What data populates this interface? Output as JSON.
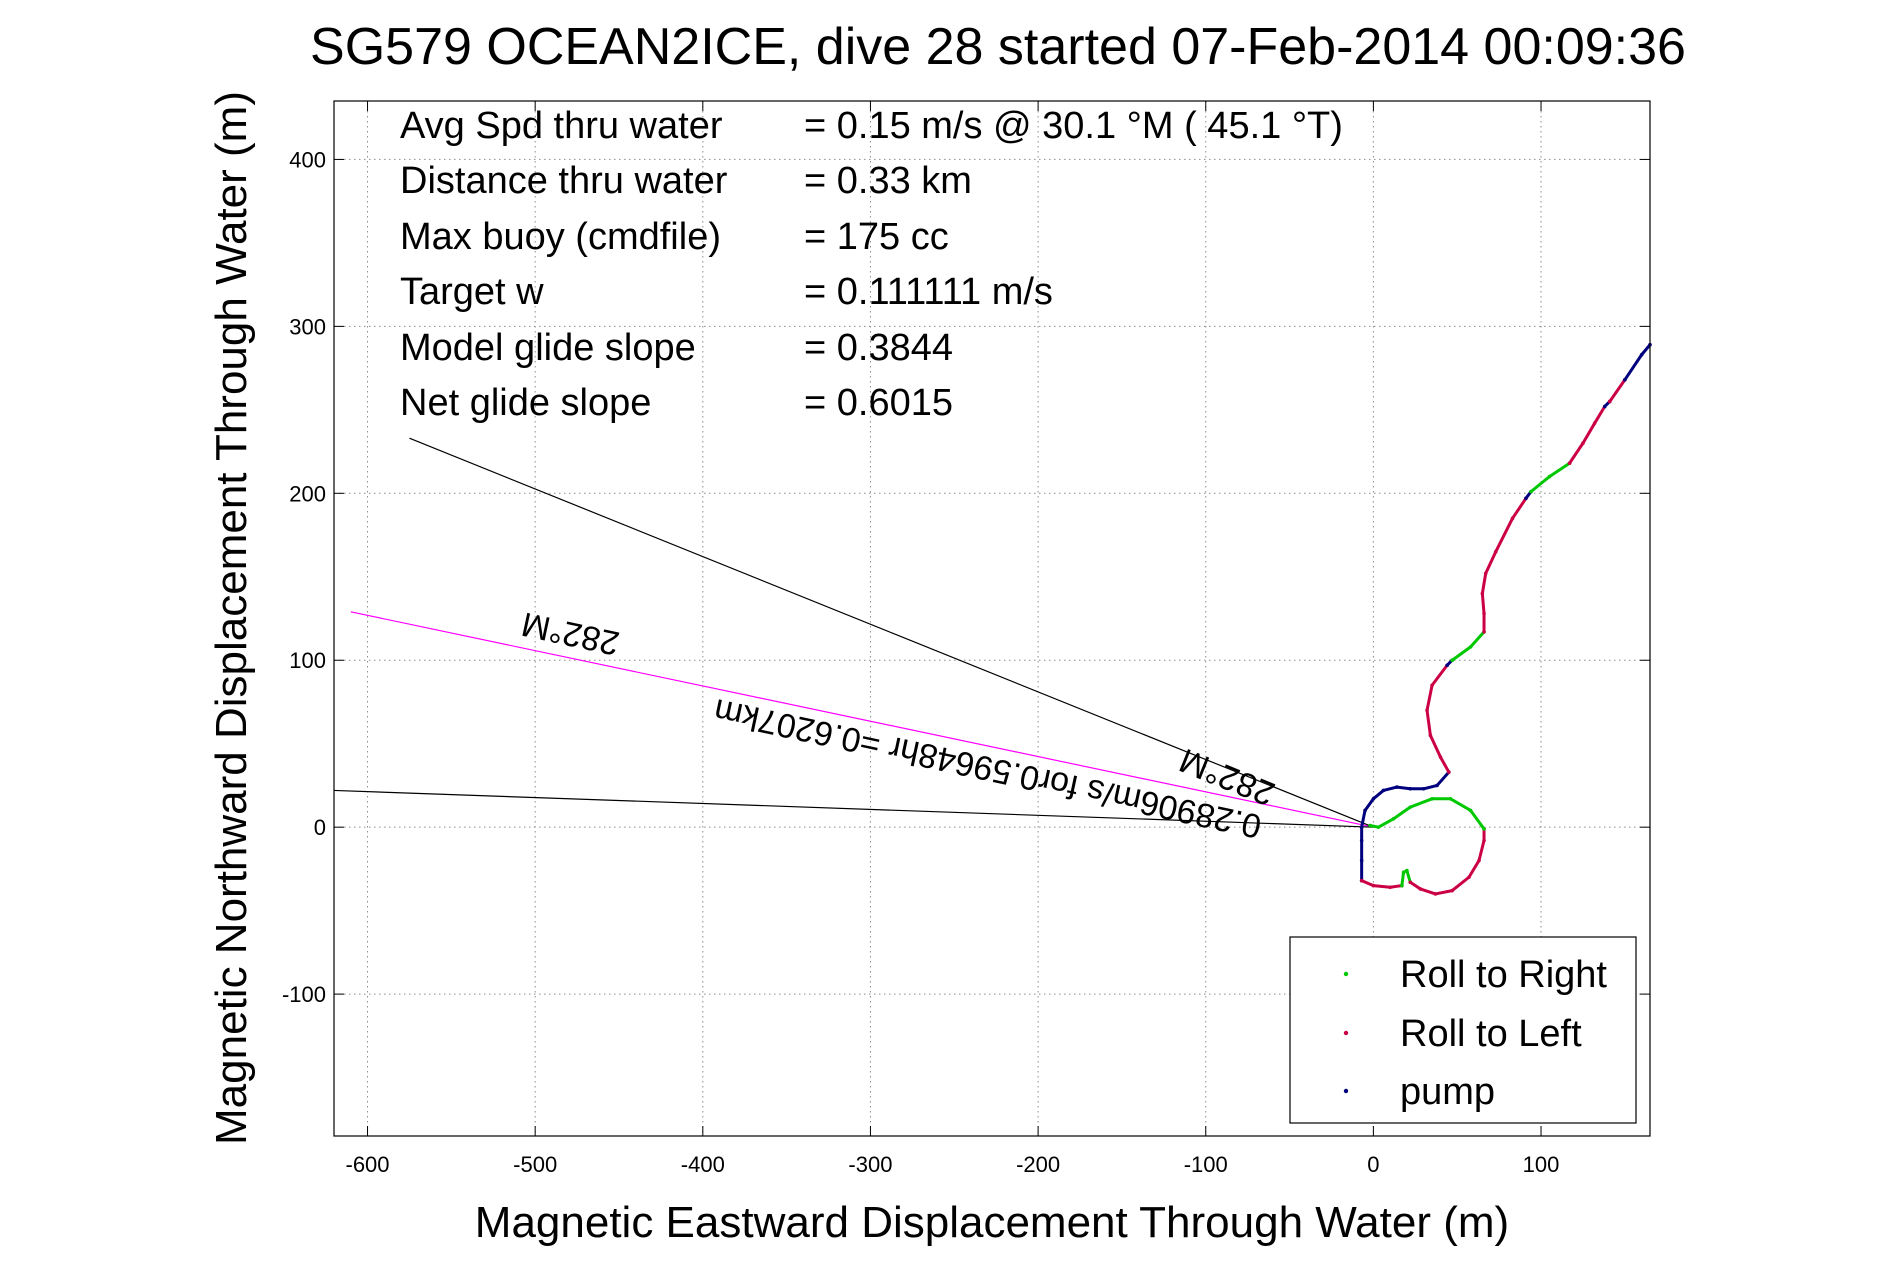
{
  "chart_data": {
    "type": "line",
    "title": "SG579 OCEAN2ICE, dive 28 started 07-Feb-2014 00:09:36",
    "xlabel": "Magnetic Eastward Displacement Through Water (m)",
    "ylabel": "Magnetic Northward Displacement Through Water (m)",
    "xlim": [
      -620,
      165
    ],
    "ylim": [
      -185,
      435
    ],
    "xticks": [
      -600,
      -500,
      -400,
      -300,
      -200,
      -100,
      0,
      100
    ],
    "yticks": [
      -100,
      0,
      100,
      200,
      300,
      400
    ],
    "grid": true,
    "legend_position": "bottom-right",
    "info_lines": [
      {
        "label": "Avg Spd thru water",
        "value": "=  0.15 m/s @  30.1 °M ( 45.1 °T)"
      },
      {
        "label": "Distance thru water",
        "value": "=  0.33 km"
      },
      {
        "label": "Max buoy (cmdfile)",
        "value": "= 175 cc"
      },
      {
        "label": "Target w",
        "value": "= 0.111111 m/s"
      },
      {
        "label": "Model glide slope",
        "value": "= 0.3844"
      },
      {
        "label": "Net glide slope",
        "value": "= 0.6015"
      }
    ],
    "current_annotation": "0.28906m/s for0.59648hr =0.6207km",
    "heading_annotations": [
      "282°M",
      "282°M"
    ],
    "reference_lines": [
      {
        "name": "current-line",
        "color": "#ff00ff",
        "points": [
          [
            0,
            0
          ],
          [
            -610,
            129
          ]
        ]
      },
      {
        "name": "heading-upper-line",
        "color": "#000000",
        "points": [
          [
            0,
            0
          ],
          [
            -575,
            233
          ]
        ]
      },
      {
        "name": "heading-lower-line",
        "color": "#000000",
        "points": [
          [
            0,
            0
          ],
          [
            -620,
            22
          ]
        ]
      }
    ],
    "series": [
      {
        "name": "pump",
        "color": "#00007f",
        "points": [
          [
            -7,
            -32
          ],
          [
            -7,
            -20
          ],
          [
            -7,
            -8
          ],
          [
            -7,
            0
          ]
        ]
      },
      {
        "name": "Roll to Left",
        "color": "#cc0044",
        "points": [
          [
            -7,
            -32
          ],
          [
            0,
            -35
          ],
          [
            10,
            -36
          ],
          [
            17,
            -35
          ]
        ]
      },
      {
        "name": "Roll to Right",
        "color": "#00c800",
        "points": [
          [
            17,
            -35
          ],
          [
            18,
            -27
          ],
          [
            20,
            -26
          ],
          [
            22,
            -33
          ]
        ]
      },
      {
        "name": "Roll to Left",
        "color": "#cc0044",
        "points": [
          [
            22,
            -33
          ],
          [
            28,
            -37
          ],
          [
            37,
            -40
          ],
          [
            47,
            -38
          ],
          [
            57,
            -30
          ],
          [
            63,
            -20
          ],
          [
            66,
            -8
          ],
          [
            66,
            -1
          ]
        ]
      },
      {
        "name": "Roll to Right",
        "color": "#00c800",
        "points": [
          [
            66,
            -1
          ],
          [
            58,
            10
          ],
          [
            46,
            17
          ],
          [
            35,
            17
          ],
          [
            22,
            12
          ],
          [
            12,
            5
          ],
          [
            3,
            0
          ],
          [
            -2,
            1
          ]
        ]
      },
      {
        "name": "pump",
        "color": "#00007f",
        "points": [
          [
            -7,
            0
          ],
          [
            -5,
            10
          ],
          [
            0,
            17
          ],
          [
            6,
            22
          ],
          [
            14,
            24
          ],
          [
            22,
            23
          ],
          [
            30,
            23
          ],
          [
            38,
            25
          ],
          [
            45,
            33
          ]
        ]
      },
      {
        "name": "Roll to Left",
        "color": "#cc0044",
        "points": [
          [
            45,
            33
          ],
          [
            40,
            42
          ],
          [
            34,
            55
          ],
          [
            32,
            70
          ],
          [
            35,
            85
          ],
          [
            44,
            97
          ]
        ]
      },
      {
        "name": "pump",
        "color": "#00007f",
        "points": [
          [
            44,
            97
          ],
          [
            47,
            100
          ]
        ]
      },
      {
        "name": "Roll to Right",
        "color": "#00c800",
        "points": [
          [
            47,
            100
          ],
          [
            58,
            108
          ],
          [
            66,
            117
          ]
        ]
      },
      {
        "name": "Roll to Left",
        "color": "#cc0044",
        "points": [
          [
            66,
            117
          ],
          [
            66,
            128
          ],
          [
            65,
            140
          ],
          [
            67,
            152
          ],
          [
            73,
            165
          ],
          [
            83,
            185
          ],
          [
            91,
            197
          ]
        ]
      },
      {
        "name": "pump",
        "color": "#00007f",
        "points": [
          [
            91,
            197
          ],
          [
            94,
            201
          ]
        ]
      },
      {
        "name": "Roll to Right",
        "color": "#00c800",
        "points": [
          [
            94,
            201
          ],
          [
            105,
            210
          ],
          [
            117,
            218
          ]
        ]
      },
      {
        "name": "Roll to Left",
        "color": "#cc0044",
        "points": [
          [
            117,
            218
          ],
          [
            125,
            230
          ],
          [
            132,
            242
          ],
          [
            138,
            252
          ]
        ]
      },
      {
        "name": "pump",
        "color": "#00007f",
        "points": [
          [
            138,
            252
          ],
          [
            141,
            255
          ]
        ]
      },
      {
        "name": "Roll to Left",
        "color": "#cc0044",
        "points": [
          [
            141,
            255
          ],
          [
            150,
            268
          ]
        ]
      },
      {
        "name": "pump",
        "color": "#00007f",
        "points": [
          [
            150,
            268
          ],
          [
            160,
            283
          ],
          [
            165,
            289
          ]
        ]
      }
    ],
    "legend": [
      {
        "label": "Roll to Right",
        "color": "#00c800"
      },
      {
        "label": "Roll to Left",
        "color": "#cc0044"
      },
      {
        "label": "pump",
        "color": "#00007f"
      }
    ]
  }
}
